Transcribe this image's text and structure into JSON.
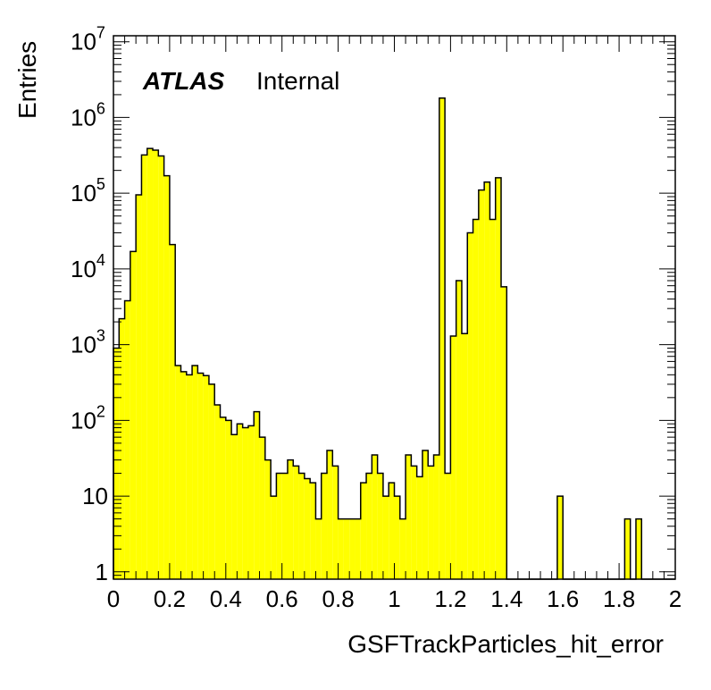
{
  "label": {
    "experiment": "ATLAS",
    "status": "Internal"
  },
  "colors": {
    "fill": "#ffff00",
    "line": "#000000",
    "frame": "#000000"
  },
  "chart_data": {
    "type": "bar",
    "title": "",
    "xlabel": "GSFTrackParticles_hit_error",
    "ylabel": "Entries",
    "xlim": [
      0,
      2
    ],
    "ylim": [
      0.8,
      12000000
    ],
    "y_scale": "log",
    "bin_width": 0.02,
    "x_ticks": [
      {
        "v": 0,
        "label": "0"
      },
      {
        "v": 0.2,
        "label": "0.2"
      },
      {
        "v": 0.4,
        "label": "0.4"
      },
      {
        "v": 0.6,
        "label": "0.6"
      },
      {
        "v": 0.8,
        "label": "0.8"
      },
      {
        "v": 1,
        "label": "1"
      },
      {
        "v": 1.2,
        "label": "1.2"
      },
      {
        "v": 1.4,
        "label": "1.4"
      },
      {
        "v": 1.6,
        "label": "1.6"
      },
      {
        "v": 1.8,
        "label": "1.8"
      },
      {
        "v": 2,
        "label": "2"
      }
    ],
    "y_ticks": [
      {
        "v": 1,
        "base": "1",
        "exp": ""
      },
      {
        "v": 10,
        "base": "10",
        "exp": ""
      },
      {
        "v": 100,
        "base": "10",
        "exp": "2"
      },
      {
        "v": 1000,
        "base": "10",
        "exp": "3"
      },
      {
        "v": 10000,
        "base": "10",
        "exp": "4"
      },
      {
        "v": 100000,
        "base": "10",
        "exp": "5"
      },
      {
        "v": 1000000,
        "base": "10",
        "exp": "6"
      },
      {
        "v": 10000000,
        "base": "10",
        "exp": "7"
      }
    ],
    "bins": [
      {
        "x": 0.0,
        "y": 900
      },
      {
        "x": 0.02,
        "y": 2200
      },
      {
        "x": 0.04,
        "y": 3800
      },
      {
        "x": 0.06,
        "y": 17000
      },
      {
        "x": 0.08,
        "y": 95000
      },
      {
        "x": 0.1,
        "y": 320000
      },
      {
        "x": 0.12,
        "y": 390000
      },
      {
        "x": 0.14,
        "y": 370000
      },
      {
        "x": 0.16,
        "y": 310000
      },
      {
        "x": 0.18,
        "y": 170000
      },
      {
        "x": 0.2,
        "y": 21000
      },
      {
        "x": 0.22,
        "y": 530
      },
      {
        "x": 0.24,
        "y": 440
      },
      {
        "x": 0.26,
        "y": 400
      },
      {
        "x": 0.28,
        "y": 530
      },
      {
        "x": 0.3,
        "y": 420
      },
      {
        "x": 0.32,
        "y": 390
      },
      {
        "x": 0.34,
        "y": 300
      },
      {
        "x": 0.36,
        "y": 160
      },
      {
        "x": 0.38,
        "y": 110
      },
      {
        "x": 0.4,
        "y": 100
      },
      {
        "x": 0.42,
        "y": 65
      },
      {
        "x": 0.44,
        "y": 90
      },
      {
        "x": 0.46,
        "y": 80
      },
      {
        "x": 0.48,
        "y": 85
      },
      {
        "x": 0.5,
        "y": 130
      },
      {
        "x": 0.52,
        "y": 60
      },
      {
        "x": 0.54,
        "y": 30
      },
      {
        "x": 0.56,
        "y": 10
      },
      {
        "x": 0.58,
        "y": 20
      },
      {
        "x": 0.6,
        "y": 20
      },
      {
        "x": 0.62,
        "y": 30
      },
      {
        "x": 0.64,
        "y": 25
      },
      {
        "x": 0.66,
        "y": 20
      },
      {
        "x": 0.68,
        "y": 17
      },
      {
        "x": 0.7,
        "y": 15
      },
      {
        "x": 0.72,
        "y": 5
      },
      {
        "x": 0.74,
        "y": 20
      },
      {
        "x": 0.76,
        "y": 40
      },
      {
        "x": 0.78,
        "y": 25
      },
      {
        "x": 0.8,
        "y": 5
      },
      {
        "x": 0.82,
        "y": 5
      },
      {
        "x": 0.84,
        "y": 5
      },
      {
        "x": 0.86,
        "y": 5
      },
      {
        "x": 0.88,
        "y": 15
      },
      {
        "x": 0.9,
        "y": 20
      },
      {
        "x": 0.92,
        "y": 35
      },
      {
        "x": 0.94,
        "y": 20
      },
      {
        "x": 0.96,
        "y": 10
      },
      {
        "x": 0.98,
        "y": 15
      },
      {
        "x": 1.0,
        "y": 10
      },
      {
        "x": 1.02,
        "y": 5
      },
      {
        "x": 1.04,
        "y": 35
      },
      {
        "x": 1.06,
        "y": 25
      },
      {
        "x": 1.08,
        "y": 18
      },
      {
        "x": 1.1,
        "y": 40
      },
      {
        "x": 1.12,
        "y": 25
      },
      {
        "x": 1.14,
        "y": 35
      },
      {
        "x": 1.16,
        "y": 1800000
      },
      {
        "x": 1.18,
        "y": 20
      },
      {
        "x": 1.2,
        "y": 1300
      },
      {
        "x": 1.22,
        "y": 7000
      },
      {
        "x": 1.24,
        "y": 1400
      },
      {
        "x": 1.26,
        "y": 30000
      },
      {
        "x": 1.28,
        "y": 45000
      },
      {
        "x": 1.3,
        "y": 110000
      },
      {
        "x": 1.32,
        "y": 140000
      },
      {
        "x": 1.34,
        "y": 45000
      },
      {
        "x": 1.36,
        "y": 160000
      },
      {
        "x": 1.38,
        "y": 5800
      },
      {
        "x": 1.58,
        "y": 10
      },
      {
        "x": 1.82,
        "y": 5
      },
      {
        "x": 1.86,
        "y": 5
      }
    ]
  }
}
